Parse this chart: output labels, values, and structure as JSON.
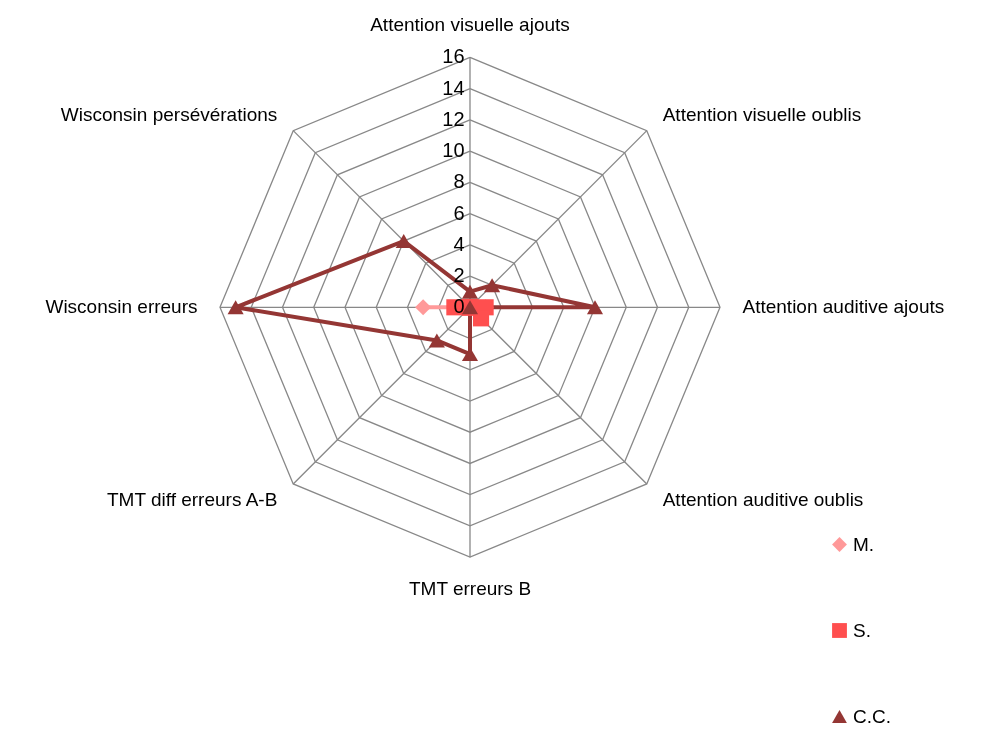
{
  "chart_data": {
    "type": "radar",
    "categories": [
      "Attention visuelle ajouts",
      "Attention visuelle oublis",
      "Attention auditive ajouts",
      "Attention auditive oublis",
      "TMT erreurs B",
      "TMT diff erreurs A-B",
      "Wisconsin erreurs",
      "Wisconsin persévérations"
    ],
    "ylim": [
      0,
      16
    ],
    "yticks": [
      0,
      2,
      4,
      6,
      8,
      10,
      12,
      14,
      16
    ],
    "grid": true,
    "legend": "bottom right",
    "line_style": "solid",
    "series": [
      {
        "name": "M.",
        "color": "#ff9999",
        "marker": "diamond",
        "values": [
          0,
          0,
          1,
          0,
          0,
          0,
          3,
          0
        ]
      },
      {
        "name": "S.",
        "color": "#ff4f4f",
        "marker": "square",
        "values": [
          0,
          0,
          1,
          1,
          0,
          0,
          1,
          0
        ]
      },
      {
        "name": "C.C.",
        "color": "#943634",
        "marker": "triangle",
        "values": [
          1,
          2,
          8,
          0,
          3,
          3,
          15,
          6
        ]
      }
    ]
  }
}
